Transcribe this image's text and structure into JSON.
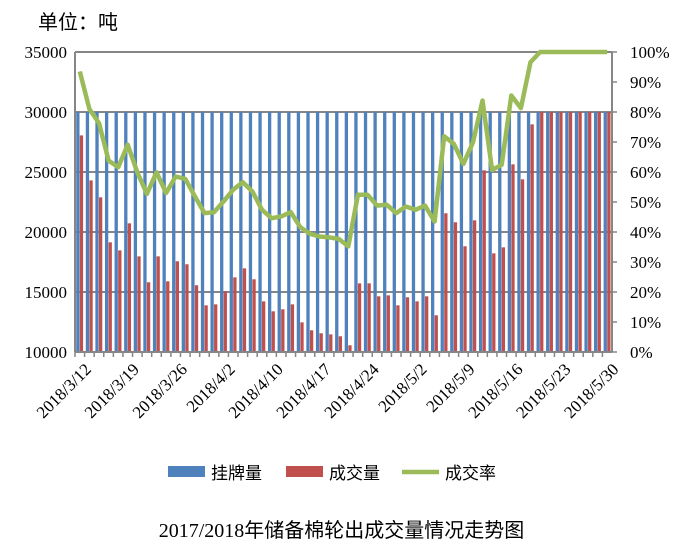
{
  "unit_label": "单位：吨",
  "caption": "2017/2018年储备棉轮出成交量情况走势图",
  "chart_data": {
    "type": "bar+line",
    "categories": [
      "2018/3/12",
      "",
      "",
      "",
      "",
      "2018/3/19",
      "",
      "",
      "",
      "",
      "2018/3/26",
      "",
      "",
      "",
      "",
      "2018/4/2",
      "",
      "",
      "",
      "",
      "2018/4/10",
      "",
      "",
      "",
      "",
      "2018/4/17",
      "",
      "",
      "",
      "",
      "2018/4/24",
      "",
      "",
      "",
      "",
      "2018/5/2",
      "",
      "",
      "",
      "",
      "2018/5/9",
      "",
      "",
      "",
      "",
      "2018/5/16",
      "",
      "",
      "",
      "",
      "2018/5/23",
      "",
      "",
      "",
      "",
      "2018/5/30"
    ],
    "y_left": {
      "ylim": [
        10000,
        35000
      ],
      "ticks": [
        "10000",
        "15000",
        "20000",
        "25000",
        "30000",
        "35000"
      ]
    },
    "y_right": {
      "ylim": [
        0,
        100
      ],
      "ticks": [
        "0%",
        "10%",
        "20%",
        "30%",
        "40%",
        "50%",
        "60%",
        "70%",
        "80%",
        "90%",
        "100%"
      ]
    },
    "grid": true,
    "legend_position": "bottom",
    "series": [
      {
        "name": "挂牌量",
        "type": "bar",
        "axis": "left",
        "color": "#4F81BD",
        "values": [
          30000,
          30000,
          30000,
          30000,
          30000,
          30000,
          30000,
          30000,
          30000,
          30000,
          30000,
          30000,
          30000,
          30000,
          30000,
          30000,
          30000,
          30000,
          30000,
          30000,
          30000,
          30000,
          30000,
          30000,
          30000,
          30000,
          30000,
          30000,
          30000,
          30000,
          30000,
          30000,
          30000,
          30000,
          30000,
          30000,
          30000,
          30000,
          30000,
          30000,
          30000,
          30000,
          30000,
          30000,
          30000,
          30000,
          30000,
          30000,
          30000,
          30000,
          30000,
          30000,
          30000,
          30000,
          30000,
          30000
        ]
      },
      {
        "name": "成交量",
        "type": "bar",
        "axis": "left",
        "color": "#C0504D",
        "values": [
          28050,
          24300,
          22890,
          19140,
          18470,
          20720,
          17970,
          15810,
          17970,
          15890,
          17560,
          17310,
          15560,
          13890,
          13970,
          15060,
          16220,
          16970,
          16060,
          14220,
          13390,
          13560,
          13970,
          12470,
          11810,
          11560,
          11470,
          11310,
          10560,
          15720,
          15720,
          14640,
          14720,
          13890,
          14560,
          14220,
          14640,
          13060,
          21560,
          20810,
          18810,
          20970,
          25140,
          18220,
          18720,
          25640,
          24390,
          28970,
          30000,
          30000,
          30000,
          30000,
          30000,
          30000,
          30000,
          30000
        ]
      },
      {
        "name": "成交率",
        "type": "line",
        "axis": "right",
        "color": "#9BBB59",
        "values": [
          93.5,
          81,
          76.3,
          63.8,
          61.6,
          69.1,
          59.9,
          52.7,
          59.9,
          53,
          58.5,
          57.7,
          51.9,
          46.3,
          46.6,
          50.2,
          54.1,
          56.6,
          53.5,
          47.4,
          44.6,
          45.2,
          46.6,
          41.6,
          39.4,
          38.5,
          38.2,
          37.7,
          35.2,
          52.4,
          52.4,
          48.8,
          49.1,
          46.3,
          48.5,
          47.4,
          48.8,
          43.5,
          71.9,
          69.4,
          62.7,
          69.9,
          83.8,
          60.7,
          62.4,
          85.5,
          81.3,
          96.6,
          100,
          100,
          100,
          100,
          100,
          100,
          100,
          100
        ]
      }
    ]
  }
}
